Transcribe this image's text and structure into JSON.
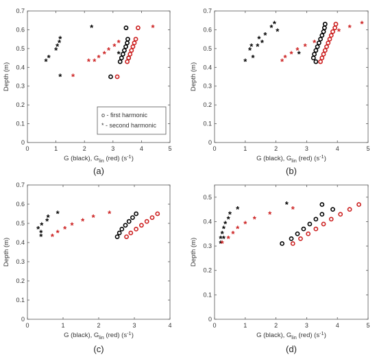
{
  "colors": {
    "black_series": "#000000",
    "red_series": "#cc1f1f",
    "axis": "#555555",
    "text": "#333333"
  },
  "chart_data": [
    {
      "id": "a",
      "type": "scatter",
      "panel_label": "(a)",
      "xlabel": "G (black), G",
      "xlabel_sub": "lin",
      "xlabel_tail": " (red) (s",
      "xlabel_sup": "-1",
      "xlabel_end": ")",
      "ylabel": "Depth (m)",
      "xlim": [
        0,
        5
      ],
      "ylim": [
        0,
        0.7
      ],
      "xticks": [
        0,
        1,
        2,
        3,
        4,
        5
      ],
      "yticks": [
        0,
        0.1,
        0.2,
        0.3,
        0.4,
        0.5,
        0.6,
        0.7
      ],
      "legend": {
        "position": "bottom-right",
        "entries": [
          {
            "marker": "o",
            "label": "o  - first harmonic"
          },
          {
            "marker": "*",
            "label": "*  - second harmonic"
          }
        ]
      },
      "series": [
        {
          "color": "black",
          "marker": "o",
          "points": [
            [
              3.46,
              0.61
            ],
            [
              2.92,
              0.35
            ],
            [
              3.52,
              0.55
            ],
            [
              3.5,
              0.53
            ],
            [
              3.45,
              0.51
            ],
            [
              3.4,
              0.49
            ],
            [
              3.35,
              0.47
            ],
            [
              3.3,
              0.45
            ],
            [
              3.25,
              0.43
            ],
            [
              3.55,
              0.45
            ]
          ]
        },
        {
          "color": "red",
          "marker": "o",
          "points": [
            [
              3.88,
              0.61
            ],
            [
              3.15,
              0.35
            ],
            [
              3.8,
              0.55
            ],
            [
              3.75,
              0.53
            ],
            [
              3.7,
              0.51
            ],
            [
              3.65,
              0.49
            ],
            [
              3.6,
              0.47
            ],
            [
              3.55,
              0.45
            ],
            [
              3.5,
              0.43
            ]
          ]
        },
        {
          "color": "black",
          "marker": "*",
          "points": [
            [
              2.25,
              0.61
            ],
            [
              1.15,
              0.55
            ],
            [
              1.12,
              0.53
            ],
            [
              1.05,
              0.51
            ],
            [
              1.0,
              0.49
            ],
            [
              0.75,
              0.45
            ],
            [
              0.65,
              0.43
            ],
            [
              1.15,
              0.35
            ],
            [
              3.2,
              0.47
            ]
          ]
        },
        {
          "color": "red",
          "marker": "*",
          "points": [
            [
              4.4,
              0.61
            ],
            [
              3.2,
              0.53
            ],
            [
              3.05,
              0.51
            ],
            [
              2.85,
              0.49
            ],
            [
              2.7,
              0.47
            ],
            [
              2.5,
              0.45
            ],
            [
              2.35,
              0.43
            ],
            [
              2.15,
              0.43
            ],
            [
              1.6,
              0.35
            ]
          ]
        }
      ]
    },
    {
      "id": "b",
      "type": "scatter",
      "panel_label": "(b)",
      "xlabel": "G (black), G",
      "xlabel_sub": "lin",
      "xlabel_tail": " (red) (s",
      "xlabel_sup": "-1",
      "xlabel_end": ")",
      "ylabel": "Depth (m)",
      "xlim": [
        0,
        5
      ],
      "ylim": [
        0,
        0.7
      ],
      "xticks": [
        0,
        1,
        2,
        3,
        4,
        5
      ],
      "yticks": [
        0,
        0.1,
        0.2,
        0.3,
        0.4,
        0.5,
        0.6,
        0.7
      ],
      "series": [
        {
          "color": "black",
          "marker": "o",
          "points": [
            [
              3.6,
              0.63
            ],
            [
              3.58,
              0.61
            ],
            [
              3.55,
              0.59
            ],
            [
              3.5,
              0.57
            ],
            [
              3.45,
              0.55
            ],
            [
              3.4,
              0.53
            ],
            [
              3.35,
              0.51
            ],
            [
              3.3,
              0.49
            ],
            [
              3.25,
              0.47
            ],
            [
              3.22,
              0.45
            ],
            [
              3.3,
              0.43
            ]
          ]
        },
        {
          "color": "red",
          "marker": "o",
          "points": [
            [
              3.95,
              0.63
            ],
            [
              3.92,
              0.61
            ],
            [
              3.85,
              0.59
            ],
            [
              3.8,
              0.57
            ],
            [
              3.75,
              0.55
            ],
            [
              3.7,
              0.53
            ],
            [
              3.65,
              0.51
            ],
            [
              3.6,
              0.49
            ],
            [
              3.55,
              0.47
            ],
            [
              3.5,
              0.45
            ],
            [
              3.45,
              0.43
            ]
          ]
        },
        {
          "color": "black",
          "marker": "*",
          "points": [
            [
              1.95,
              0.63
            ],
            [
              1.85,
              0.61
            ],
            [
              2.05,
              0.59
            ],
            [
              1.65,
              0.57
            ],
            [
              1.45,
              0.55
            ],
            [
              1.55,
              0.53
            ],
            [
              1.2,
              0.51
            ],
            [
              1.4,
              0.51
            ],
            [
              1.15,
              0.49
            ],
            [
              1.25,
              0.45
            ],
            [
              1.0,
              0.43
            ],
            [
              2.75,
              0.47
            ]
          ]
        },
        {
          "color": "red",
          "marker": "*",
          "points": [
            [
              4.8,
              0.63
            ],
            [
              4.4,
              0.61
            ],
            [
              4.05,
              0.59
            ],
            [
              3.25,
              0.53
            ],
            [
              2.95,
              0.51
            ],
            [
              2.7,
              0.49
            ],
            [
              2.5,
              0.47
            ],
            [
              2.3,
              0.45
            ],
            [
              2.2,
              0.43
            ]
          ]
        }
      ]
    },
    {
      "id": "c",
      "type": "scatter",
      "panel_label": "(c)",
      "xlabel": "G (black), G",
      "xlabel_sub": "lin",
      "xlabel_tail": " (red) (s",
      "xlabel_sup": "-1",
      "xlabel_end": ")",
      "ylabel": "Depth (m)",
      "xlim": [
        0,
        4
      ],
      "ylim": [
        0,
        0.7
      ],
      "xticks": [
        0,
        1,
        2,
        3,
        4
      ],
      "yticks": [
        0,
        0.1,
        0.2,
        0.3,
        0.4,
        0.5,
        0.6,
        0.7
      ],
      "series": [
        {
          "color": "black",
          "marker": "o",
          "points": [
            [
              3.05,
              0.55
            ],
            [
              2.95,
              0.53
            ],
            [
              2.85,
              0.51
            ],
            [
              2.75,
              0.49
            ],
            [
              2.65,
              0.47
            ],
            [
              2.58,
              0.45
            ],
            [
              2.52,
              0.43
            ]
          ]
        },
        {
          "color": "red",
          "marker": "o",
          "points": [
            [
              3.65,
              0.55
            ],
            [
              3.5,
              0.53
            ],
            [
              3.35,
              0.51
            ],
            [
              3.2,
              0.49
            ],
            [
              3.05,
              0.47
            ],
            [
              2.9,
              0.45
            ],
            [
              2.78,
              0.43
            ]
          ]
        },
        {
          "color": "black",
          "marker": "*",
          "points": [
            [
              0.85,
              0.55
            ],
            [
              0.58,
              0.53
            ],
            [
              0.55,
              0.51
            ],
            [
              0.3,
              0.47
            ],
            [
              0.4,
              0.49
            ],
            [
              0.38,
              0.45
            ],
            [
              0.38,
              0.43
            ]
          ]
        },
        {
          "color": "red",
          "marker": "*",
          "points": [
            [
              2.3,
              0.55
            ],
            [
              1.85,
              0.53
            ],
            [
              1.55,
              0.51
            ],
            [
              1.25,
              0.49
            ],
            [
              1.05,
              0.47
            ],
            [
              0.85,
              0.45
            ],
            [
              0.7,
              0.43
            ]
          ]
        }
      ]
    },
    {
      "id": "d",
      "type": "scatter",
      "panel_label": "(d)",
      "xlabel": "G (black), G",
      "xlabel_sub": "lin",
      "xlabel_tail": " (red) (s",
      "xlabel_sup": "-1",
      "xlabel_end": ")",
      "ylabel": "Depth (m)",
      "xlim": [
        0,
        5
      ],
      "ylim": [
        0,
        0.55
      ],
      "xticks": [
        0,
        1,
        2,
        3,
        4,
        5
      ],
      "yticks": [
        0,
        0.1,
        0.2,
        0.3,
        0.4,
        0.5
      ],
      "series": [
        {
          "color": "black",
          "marker": "o",
          "points": [
            [
              3.5,
              0.47
            ],
            [
              3.85,
              0.45
            ],
            [
              3.5,
              0.43
            ],
            [
              3.3,
              0.41
            ],
            [
              3.1,
              0.39
            ],
            [
              2.9,
              0.37
            ],
            [
              2.7,
              0.35
            ],
            [
              2.5,
              0.33
            ],
            [
              2.2,
              0.31
            ]
          ]
        },
        {
          "color": "red",
          "marker": "o",
          "points": [
            [
              4.7,
              0.47
            ],
            [
              4.4,
              0.45
            ],
            [
              4.1,
              0.43
            ],
            [
              3.8,
              0.41
            ],
            [
              3.55,
              0.39
            ],
            [
              3.3,
              0.37
            ],
            [
              3.05,
              0.35
            ],
            [
              2.8,
              0.33
            ],
            [
              2.55,
              0.31
            ]
          ]
        },
        {
          "color": "black",
          "marker": "*",
          "points": [
            [
              0.75,
              0.45
            ],
            [
              0.5,
              0.43
            ],
            [
              0.45,
              0.41
            ],
            [
              0.35,
              0.39
            ],
            [
              0.3,
              0.37
            ],
            [
              0.25,
              0.35
            ],
            [
              0.2,
              0.33
            ],
            [
              0.3,
              0.33
            ],
            [
              0.2,
              0.31
            ],
            [
              2.35,
              0.47
            ]
          ]
        },
        {
          "color": "red",
          "marker": "*",
          "points": [
            [
              2.55,
              0.45
            ],
            [
              1.8,
              0.43
            ],
            [
              1.3,
              0.41
            ],
            [
              1.0,
              0.39
            ],
            [
              0.75,
              0.37
            ],
            [
              0.6,
              0.35
            ],
            [
              0.45,
              0.33
            ],
            [
              0.25,
              0.31
            ]
          ]
        }
      ]
    }
  ]
}
